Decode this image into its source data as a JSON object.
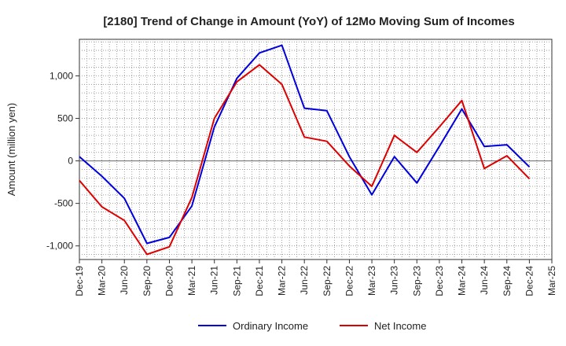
{
  "chart_data": {
    "type": "line",
    "title": "[2180]  Trend of Change in Amount (YoY) of 12Mo Moving Sum of Incomes",
    "ylabel": "Amount (million yen)",
    "xlabel": "",
    "categories": [
      "Dec-19",
      "Mar-20",
      "Jun-20",
      "Sep-20",
      "Dec-20",
      "Mar-21",
      "Jun-21",
      "Sep-21",
      "Dec-21",
      "Mar-22",
      "Jun-22",
      "Sep-22",
      "Dec-22",
      "Mar-23",
      "Jun-23",
      "Sep-23",
      "Dec-23",
      "Mar-24",
      "Jun-24",
      "Sep-24",
      "Dec-24",
      "Mar-25"
    ],
    "ylim": [
      -1160,
      1430
    ],
    "yticks": [
      -1000,
      -500,
      0,
      500,
      1000
    ],
    "ytick_labels": [
      "-1,000",
      "-500",
      "0",
      "500",
      "1,000"
    ],
    "grid": true,
    "legend_position": "bottom",
    "series": [
      {
        "name": "Ordinary Income",
        "color": "#0000dd",
        "values": [
          50,
          -180,
          -440,
          -970,
          -900,
          -530,
          400,
          970,
          1270,
          1360,
          620,
          590,
          50,
          -400,
          50,
          -260,
          170,
          610,
          170,
          190,
          -70,
          null
        ]
      },
      {
        "name": "Net Income",
        "color": "#dd0000",
        "values": [
          -230,
          -540,
          -700,
          -1100,
          -1010,
          -430,
          500,
          930,
          1130,
          900,
          280,
          230,
          -60,
          -300,
          300,
          100,
          400,
          710,
          -90,
          60,
          -210,
          null
        ]
      }
    ]
  }
}
